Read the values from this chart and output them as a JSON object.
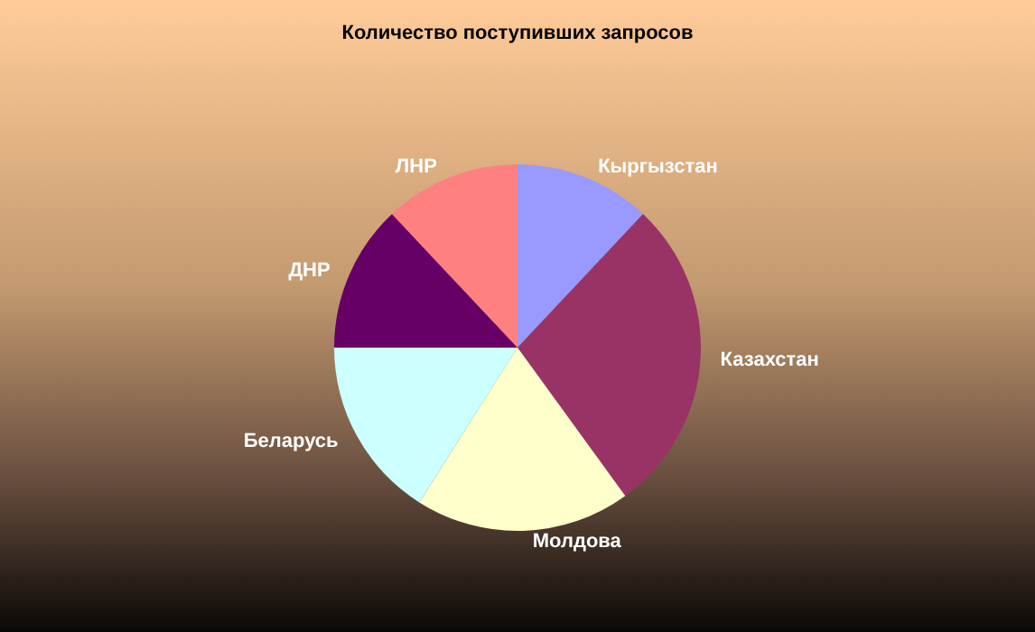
{
  "chart_data": {
    "type": "pie",
    "title": "Количество поступивших запросов",
    "categories": [
      "Кыргызстан",
      "Казахстан",
      "Молдова",
      "Беларусь",
      "ДНР",
      "ЛНР"
    ],
    "values": [
      12,
      28,
      19,
      16,
      13,
      12
    ],
    "colors": [
      "#9999ff",
      "#993366",
      "#ffffcc",
      "#ccffff",
      "#660066",
      "#ff8080"
    ]
  }
}
